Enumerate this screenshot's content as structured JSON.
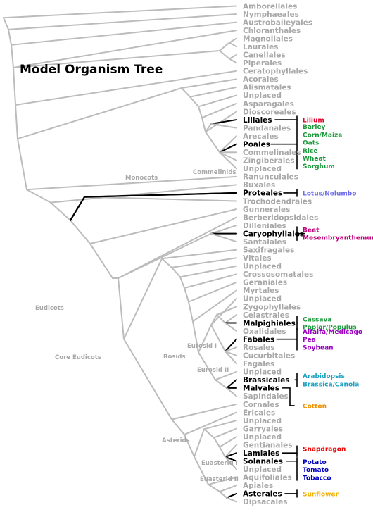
{
  "title": "Model Organism Tree",
  "colors": {
    "grey": "#bcbcbc",
    "label_grey": "#a8a8a8",
    "black": "#000000",
    "red": "#e0002a",
    "green": "#1a9a3a",
    "blue_violet": "#6a6aea",
    "magenta": "#c0007a",
    "purple": "#9a00c0",
    "teal": "#1aa0c0",
    "orange": "#f09000",
    "bright_red": "#ee0000",
    "navy": "#0000c0",
    "gold": "#f0b000"
  },
  "leaves": [
    {
      "name": "Amborellales",
      "highlight": false
    },
    {
      "name": "Nymphaeales",
      "highlight": false
    },
    {
      "name": "Austrobaileyales",
      "highlight": false
    },
    {
      "name": "Chloranthales",
      "highlight": false
    },
    {
      "name": "Magnoliales",
      "highlight": false
    },
    {
      "name": "Laurales",
      "highlight": false
    },
    {
      "name": "Canellales",
      "highlight": false
    },
    {
      "name": "Piperales",
      "highlight": false
    },
    {
      "name": "Ceratophyllales",
      "highlight": false
    },
    {
      "name": "Acorales",
      "highlight": false
    },
    {
      "name": "Alismatales",
      "highlight": false
    },
    {
      "name": "Unplaced",
      "highlight": false
    },
    {
      "name": "Asparagales",
      "highlight": false
    },
    {
      "name": "Dioscoreales",
      "highlight": false
    },
    {
      "name": "Liliales",
      "highlight": true
    },
    {
      "name": "Pandanales",
      "highlight": false
    },
    {
      "name": "Arecales",
      "highlight": false
    },
    {
      "name": "Poales",
      "highlight": true
    },
    {
      "name": "Commelinales",
      "highlight": false
    },
    {
      "name": "Zingiberales",
      "highlight": false
    },
    {
      "name": "Unplaced",
      "highlight": false
    },
    {
      "name": "Ranunculales",
      "highlight": false
    },
    {
      "name": "Buxales",
      "highlight": false
    },
    {
      "name": "Proteales",
      "highlight": true
    },
    {
      "name": "Trochodendrales",
      "highlight": false
    },
    {
      "name": "Gunnerales",
      "highlight": false
    },
    {
      "name": "Berberidopsidales",
      "highlight": false
    },
    {
      "name": "Dilleniales",
      "highlight": false
    },
    {
      "name": "Caryophyllales",
      "highlight": true
    },
    {
      "name": "Santalales",
      "highlight": false
    },
    {
      "name": "Saxifragales",
      "highlight": false
    },
    {
      "name": "Vitales",
      "highlight": false
    },
    {
      "name": "Unplaced",
      "highlight": false
    },
    {
      "name": "Crossosomatales",
      "highlight": false
    },
    {
      "name": "Geraniales",
      "highlight": false
    },
    {
      "name": "Myrtales",
      "highlight": false
    },
    {
      "name": "Unplaced",
      "highlight": false
    },
    {
      "name": "Zygophyllales",
      "highlight": false
    },
    {
      "name": "Celastrales",
      "highlight": false
    },
    {
      "name": "Malpighiales",
      "highlight": true
    },
    {
      "name": "Oxalidales",
      "highlight": false
    },
    {
      "name": "Fabales",
      "highlight": true
    },
    {
      "name": "Rosales",
      "highlight": false
    },
    {
      "name": "Cucurbitales",
      "highlight": false
    },
    {
      "name": "Fagales",
      "highlight": false
    },
    {
      "name": "Unplaced",
      "highlight": false
    },
    {
      "name": "Brassicales",
      "highlight": true
    },
    {
      "name": "Malvales",
      "highlight": true
    },
    {
      "name": "Sapindales",
      "highlight": false
    },
    {
      "name": "Cornales",
      "highlight": false
    },
    {
      "name": "Ericales",
      "highlight": false
    },
    {
      "name": "Unplaced",
      "highlight": false
    },
    {
      "name": "Garryales",
      "highlight": false
    },
    {
      "name": "Unplaced",
      "highlight": false
    },
    {
      "name": "Gentianales",
      "highlight": false
    },
    {
      "name": "Lamiales",
      "highlight": true
    },
    {
      "name": "Solanales",
      "highlight": true
    },
    {
      "name": "Unplaced",
      "highlight": false
    },
    {
      "name": "Aquifoliales",
      "highlight": false
    },
    {
      "name": "Apiales",
      "highlight": false
    },
    {
      "name": "Asterales",
      "highlight": true
    },
    {
      "name": "Dipsacales",
      "highlight": false
    }
  ],
  "clade_labels": {
    "monocots": "Monocots",
    "commelinids": "Commelinids",
    "eudicots": "Eudicots",
    "core_eudicots": "Core Eudicots",
    "rosids": "Rosids",
    "eurosid_i": "Eurosid I",
    "eurosid_ii": "Eurosid II",
    "asterids": "Asterids",
    "euasterid_i": "Euasterid I",
    "euasterid_ii": "Euasterid II"
  },
  "organism_groups": [
    {
      "order": "Liliales",
      "color_key": "red",
      "names": [
        "Lilium"
      ]
    },
    {
      "order": "Poales",
      "color_key": "green",
      "names": [
        "Barley",
        "Corn/Maize",
        "Oats",
        "Rice",
        "Wheat",
        "Sorghum"
      ]
    },
    {
      "order": "Proteales",
      "color_key": "blue_violet",
      "names": [
        "Lotus/Nelumbo"
      ]
    },
    {
      "order": "Caryophyllales",
      "color_key": "magenta",
      "names": [
        "Beet",
        "Mesembryanthemum"
      ]
    },
    {
      "order": "Malpighiales",
      "color_key": "green",
      "names": [
        "Cassava",
        "Poplar/Populus"
      ]
    },
    {
      "order": "Fabales",
      "color_key": "purple",
      "names": [
        "Alfalfa/Medicago",
        "Pea",
        "Soybean"
      ]
    },
    {
      "order": "Brassicales",
      "color_key": "teal",
      "names": [
        "Arabidopsis",
        "Brassica/Canola"
      ]
    },
    {
      "order": "Malvales",
      "color_key": "orange",
      "names": [
        "Cotton"
      ]
    },
    {
      "order": "Lamiales",
      "color_key": "bright_red",
      "names": [
        "Snapdragon"
      ]
    },
    {
      "order": "Solanales",
      "color_key": "navy",
      "names": [
        "Potato",
        "Tomato",
        "Tobacco"
      ]
    },
    {
      "order": "Asterales",
      "color_key": "gold",
      "names": [
        "Sunflower"
      ]
    }
  ]
}
